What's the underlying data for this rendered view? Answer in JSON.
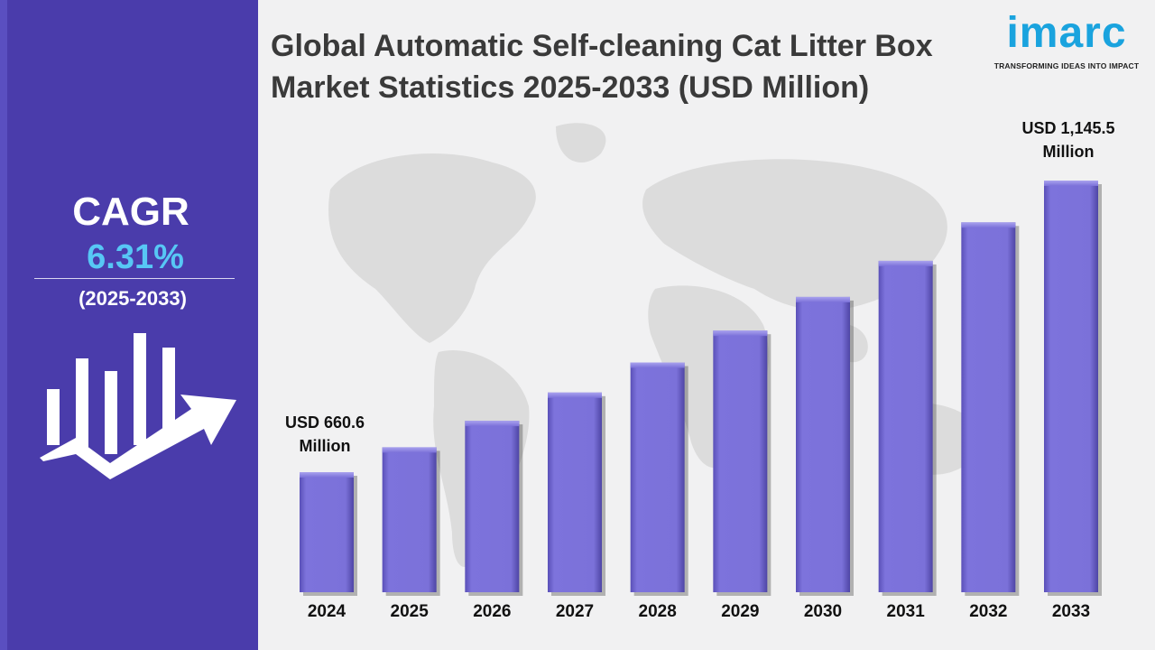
{
  "header": {
    "title": "Global Automatic Self-cleaning Cat Litter Box Market Statistics 2025-2033 (USD Million)"
  },
  "brand": {
    "name": "imarc",
    "tagline": "TRANSFORMING IDEAS INTO IMPACT",
    "color": "#1aa3de"
  },
  "sidebar": {
    "cagr_label": "CAGR",
    "cagr_value": "6.31%",
    "period": "(2025-2033)",
    "icon": "growth-chart-icon",
    "background": "#4a3cab",
    "accent": "#57c7f5"
  },
  "chart_data": {
    "type": "bar",
    "title": "Global Automatic Self-cleaning Cat Litter Box Market Statistics 2025-2033 (USD Million)",
    "categories": [
      "2024",
      "2025",
      "2026",
      "2027",
      "2028",
      "2029",
      "2030",
      "2031",
      "2032",
      "2033"
    ],
    "values": [
      660.6,
      702,
      746,
      793,
      843,
      896,
      952,
      1012,
      1076,
      1145.5
    ],
    "annotations": {
      "first": "USD 660.6 Million",
      "last": "USD 1,145.5 Million"
    },
    "bar_color": "#7b71d9",
    "grid": false
  }
}
